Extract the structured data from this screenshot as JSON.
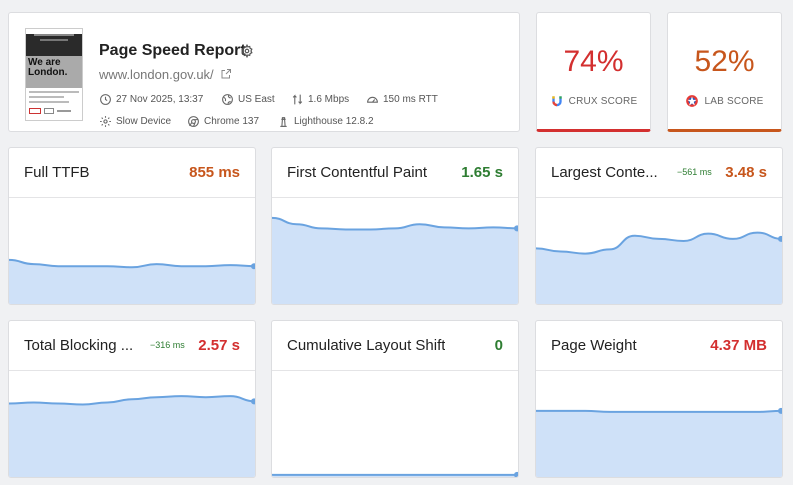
{
  "report": {
    "title": "Page Speed Report",
    "url": "www.london.gov.uk/",
    "thumbnail_hero": "We are London.",
    "meta": {
      "date": "27 Nov 2025, 13:37",
      "location": "US East",
      "bandwidth": "1.6 Mbps",
      "rtt": "150 ms RTT",
      "device": "Slow Device",
      "browser": "Chrome 137",
      "lighthouse": "Lighthouse 12.8.2"
    }
  },
  "scores": {
    "crux": {
      "value": "74%",
      "label": "CRUX SCORE",
      "color": "#d32f2f"
    },
    "lab": {
      "value": "52%",
      "label": "LAB SCORE",
      "color": "#c7561c"
    }
  },
  "metrics": [
    {
      "name": "Full TTFB",
      "value": "855 ms",
      "delta": "",
      "status": "orange",
      "trend": [
        0.42,
        0.38,
        0.36,
        0.36,
        0.36,
        0.35,
        0.38,
        0.36,
        0.36,
        0.37,
        0.36
      ]
    },
    {
      "name": "First Contentful Paint",
      "value": "1.65 s",
      "delta": "",
      "status": "green",
      "trend": [
        0.82,
        0.76,
        0.72,
        0.71,
        0.71,
        0.72,
        0.76,
        0.73,
        0.72,
        0.73,
        0.72
      ]
    },
    {
      "name": "Largest Conte...",
      "value": "3.48 s",
      "delta": "−561 ms",
      "status": "orange",
      "trend": [
        0.53,
        0.5,
        0.48,
        0.52,
        0.65,
        0.62,
        0.6,
        0.67,
        0.62,
        0.68,
        0.62
      ]
    },
    {
      "name": "Total Blocking ...",
      "value": "2.57 s",
      "delta": "−316 ms",
      "status": "red",
      "trend": [
        0.7,
        0.71,
        0.7,
        0.69,
        0.71,
        0.74,
        0.76,
        0.77,
        0.76,
        0.77,
        0.72
      ]
    },
    {
      "name": "Cumulative Layout Shift",
      "value": "0",
      "delta": "",
      "status": "green",
      "trend": [
        0.02,
        0.02,
        0.02,
        0.02,
        0.02,
        0.02,
        0.02,
        0.02,
        0.02,
        0.02,
        0.02
      ]
    },
    {
      "name": "Page Weight",
      "value": "4.37 MB",
      "delta": "",
      "status": "red",
      "trend": [
        0.63,
        0.63,
        0.63,
        0.62,
        0.62,
        0.62,
        0.62,
        0.62,
        0.62,
        0.62,
        0.63
      ]
    }
  ],
  "colors": {
    "orange": "#c7561c",
    "green": "#2e7d32",
    "red": "#d32f2f",
    "chart_fill": "#cfe1f8",
    "chart_line": "#6aa3e0"
  }
}
